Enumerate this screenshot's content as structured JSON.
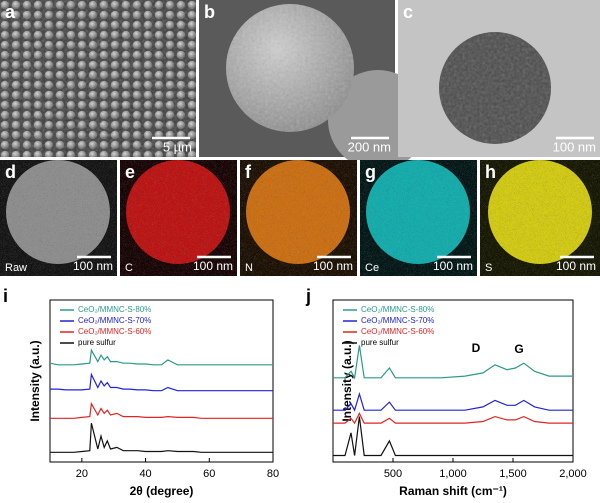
{
  "panels": [
    {
      "letter": "a",
      "scale": "5 µm"
    },
    {
      "letter": "b",
      "scale": "200 nm"
    },
    {
      "letter": "c",
      "scale": "100 nm"
    },
    {
      "letter": "d",
      "scale": "100 nm",
      "element": "Raw"
    },
    {
      "letter": "e",
      "scale": "100 nm",
      "element": "C"
    },
    {
      "letter": "f",
      "scale": "100 nm",
      "element": "N"
    },
    {
      "letter": "g",
      "scale": "100 nm",
      "element": "Ce"
    },
    {
      "letter": "h",
      "scale": "100 nm",
      "element": "S"
    }
  ],
  "chart_data": [
    {
      "type": "line",
      "panel": "i",
      "x_label": "2θ (degree)",
      "y_label": "Intensity (a.u.)",
      "x": [
        10,
        12.5,
        15,
        17.5,
        20,
        22.5,
        23,
        25,
        26,
        27,
        28,
        29,
        31,
        33,
        35,
        37.5,
        40,
        42.5,
        45,
        47,
        50,
        52.5,
        55,
        57.5,
        60,
        65,
        70,
        75,
        80
      ],
      "xlim": [
        10,
        80
      ],
      "xticks": [
        20,
        40,
        60,
        80
      ],
      "ylim": [
        0,
        100
      ],
      "legend": "upper left",
      "series": [
        {
          "name": "CeO₂/MMNC-S-80%",
          "color": "#2a9a8a",
          "values": [
            61,
            60,
            60,
            60,
            60.5,
            61,
            69,
            62,
            66,
            63,
            65,
            62,
            62,
            61,
            61,
            60.5,
            60.5,
            60,
            60,
            63,
            60,
            60,
            60,
            60,
            60,
            60,
            60,
            60,
            60
          ]
        },
        {
          "name": "CeO₂/MMNC-S-70%",
          "color": "#2222d8",
          "values": [
            45,
            45,
            44.5,
            44.5,
            44.5,
            45,
            54,
            46,
            50,
            47,
            49,
            46,
            46,
            45,
            45,
            44.5,
            44.5,
            44,
            44,
            46,
            44,
            44,
            44,
            44,
            44,
            44,
            44,
            44,
            44
          ]
        },
        {
          "name": "CeO₂/MMNC-S-60%",
          "color": "#e02424",
          "values": [
            27,
            27,
            27,
            27,
            27.5,
            28,
            36,
            29,
            33,
            30,
            32,
            29,
            30,
            28,
            28,
            28,
            27.5,
            27.5,
            27.5,
            28,
            27.5,
            27.5,
            27.5,
            27,
            27,
            27,
            27,
            27,
            27
          ]
        },
        {
          "name": "pure sulfur",
          "color": "#111111",
          "values": [
            6,
            6,
            6,
            6,
            6.5,
            7,
            24,
            8,
            16,
            9,
            13,
            8,
            9,
            7,
            7,
            7,
            6.5,
            6.5,
            6.5,
            7,
            6.5,
            6.5,
            6.5,
            6,
            6,
            6,
            6,
            6,
            6
          ]
        }
      ]
    },
    {
      "type": "line",
      "panel": "j",
      "x_label": "Raman shift (cm⁻¹)",
      "y_label": "Intensity (a.u.)",
      "x": [
        0,
        100,
        150,
        180,
        220,
        260,
        300,
        400,
        470,
        520,
        700,
        900,
        1100,
        1250,
        1350,
        1450,
        1520,
        1590,
        1680,
        1800,
        2000
      ],
      "xlim": [
        0,
        2000
      ],
      "xticks": [
        500,
        {
          "value": 1000,
          "label": "1,000"
        },
        {
          "value": 1500,
          "label": "1,500"
        },
        {
          "value": 2000,
          "label": "2,000"
        }
      ],
      "ylim": [
        0,
        100
      ],
      "legend": "upper left",
      "annotations": [
        "D",
        "G"
      ],
      "series": [
        {
          "name": "CeO₂/MMNC-S-80%",
          "color": "#2a9a8a",
          "values": [
            52,
            52,
            56,
            52,
            72,
            52,
            52,
            52,
            58,
            52,
            52,
            52,
            53,
            55,
            60,
            57,
            58,
            61,
            56,
            53,
            53
          ]
        },
        {
          "name": "CeO₂/MMNC-S-70%",
          "color": "#2222d8",
          "values": [
            32,
            32,
            36,
            32,
            42,
            32,
            32,
            32,
            37,
            32,
            32,
            32,
            32,
            34,
            38,
            35,
            35,
            38,
            34,
            32,
            32
          ]
        },
        {
          "name": "CeO₂/MMNC-S-60%",
          "color": "#e02424",
          "values": [
            24,
            24,
            27,
            24,
            30,
            24,
            24,
            24,
            27,
            24,
            24,
            24,
            24,
            25,
            28,
            26,
            26,
            28,
            25,
            24,
            24
          ]
        },
        {
          "name": "pure sulfur",
          "color": "#111111",
          "values": [
            4,
            4,
            18,
            4,
            28,
            4,
            4,
            4,
            13,
            4,
            4,
            4,
            4,
            4,
            4,
            4,
            4,
            4,
            4,
            4,
            4
          ]
        }
      ]
    }
  ]
}
